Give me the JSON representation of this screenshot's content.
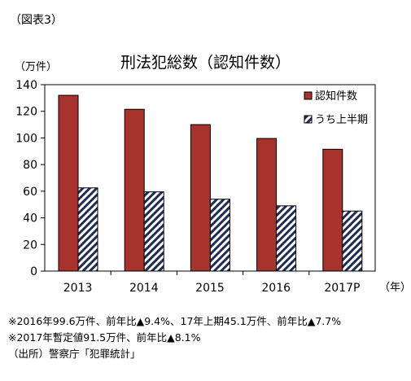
{
  "figure_label": "（図表3）",
  "chart_data": {
    "type": "bar",
    "title": "刑法犯総数（認知件数）",
    "ylabel": "（万件）",
    "xlabel": "（年）",
    "ylim": [
      0,
      140
    ],
    "yticks": [
      0,
      20,
      40,
      60,
      80,
      100,
      120,
      140
    ],
    "categories": [
      "2013",
      "2014",
      "2015",
      "2016",
      "2017P"
    ],
    "series": [
      {
        "name": "認知件数",
        "values": [
          132,
          121.5,
          110,
          99.6,
          91.5
        ],
        "color": "#a8322c",
        "pattern": "solid"
      },
      {
        "name": "うち上半期",
        "values": [
          62.5,
          59.5,
          54,
          49,
          45.1
        ],
        "color": "#1f2d55",
        "pattern": "diagonal-hatch"
      }
    ],
    "grid": false,
    "legend": "top-right"
  },
  "notes": [
    "※2016年99.6万件、前年比▲9.4%、17年上期45.1万件、前年比▲7.7%",
    "※2017年暫定値91.5万件、前年比▲8.1%"
  ],
  "source": "（出所）警察庁「犯罪統計」"
}
